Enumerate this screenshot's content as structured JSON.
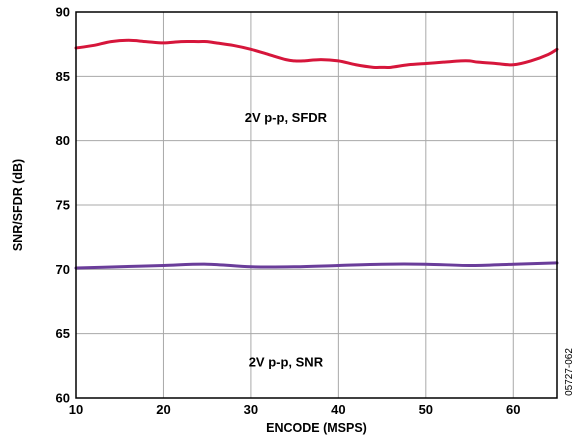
{
  "chart_data": {
    "type": "line",
    "xlabel": "ENCODE (MSPS)",
    "ylabel": "SNR/SFDR (dB)",
    "xlim": [
      10,
      65
    ],
    "ylim": [
      60,
      90
    ],
    "xticks": [
      10,
      20,
      30,
      40,
      50,
      60
    ],
    "yticks": [
      60,
      65,
      70,
      75,
      80,
      85,
      90
    ],
    "grid": true,
    "series": [
      {
        "name": "2V p-p, SFDR",
        "color": "#d6163b",
        "x": [
          10,
          12,
          14,
          16,
          18,
          20,
          22,
          24,
          25,
          26,
          28,
          30,
          32,
          34,
          35,
          36,
          38,
          40,
          42,
          44,
          45,
          46,
          48,
          50,
          52,
          54,
          55,
          56,
          58,
          60,
          62,
          64,
          65
        ],
        "y": [
          87.2,
          87.4,
          87.7,
          87.8,
          87.7,
          87.6,
          87.7,
          87.7,
          87.7,
          87.6,
          87.4,
          87.1,
          86.7,
          86.3,
          86.2,
          86.2,
          86.3,
          86.2,
          85.9,
          85.7,
          85.7,
          85.7,
          85.9,
          86.0,
          86.1,
          86.2,
          86.2,
          86.1,
          86.0,
          85.9,
          86.2,
          86.7,
          87.1
        ]
      },
      {
        "name": "2V p-p, SNR",
        "color": "#6a3d9a",
        "x": [
          10,
          15,
          20,
          25,
          30,
          35,
          40,
          45,
          50,
          55,
          60,
          65
        ],
        "y": [
          70.1,
          70.2,
          70.3,
          70.4,
          70.2,
          70.2,
          70.3,
          70.4,
          70.4,
          70.3,
          70.4,
          70.5
        ]
      }
    ],
    "annotations": [
      {
        "text": "2V p-p, SFDR",
        "x": 34,
        "y": 81.8
      },
      {
        "text": "2V p-p, SNR",
        "x": 34,
        "y": 62.8
      }
    ],
    "figure_id": "05727-062"
  }
}
